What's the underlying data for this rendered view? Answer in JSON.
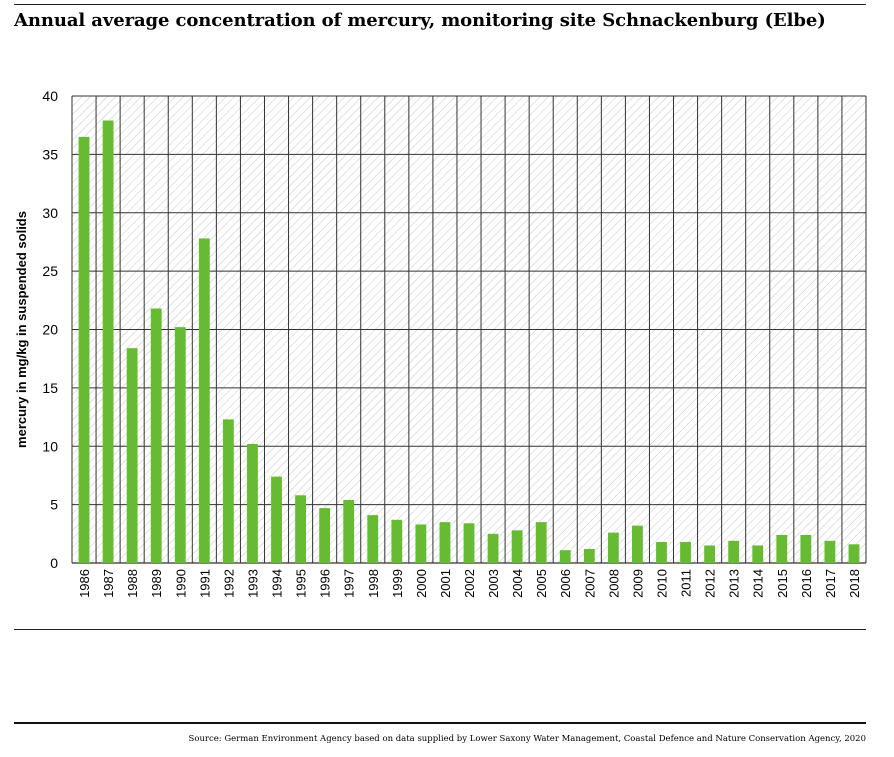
{
  "header": {
    "title": "Annual average concentration of mercury, monitoring site Schnackenburg (Elbe)"
  },
  "footer": {
    "source": "Source: German Environment Agency based on data supplied by Lower Saxony Water Management, Coastal Defence and Nature Conservation Agency, 2020"
  },
  "chart_data": {
    "type": "bar",
    "title": "Annual average concentration of mercury, monitoring site Schnackenburg (Elbe)",
    "xlabel": "",
    "ylabel": "mercury in mg/kg in suspended solids",
    "ylim": [
      0,
      40
    ],
    "yticks": [
      0,
      5,
      10,
      15,
      20,
      25,
      30,
      35,
      40
    ],
    "grid": true,
    "bar_color": "#66bb33",
    "categories": [
      "1986",
      "1987",
      "1988",
      "1989",
      "1990",
      "1991",
      "1992",
      "1993",
      "1994",
      "1995",
      "1996",
      "1997",
      "1998",
      "1999",
      "2000",
      "2001",
      "2002",
      "2003",
      "2004",
      "2005",
      "2006",
      "2007",
      "2008",
      "2009",
      "2010",
      "2011",
      "2012",
      "2013",
      "2014",
      "2015",
      "2016",
      "2017",
      "2018"
    ],
    "values": [
      36.5,
      37.9,
      18.4,
      21.8,
      20.2,
      27.8,
      12.3,
      10.2,
      7.4,
      5.8,
      4.7,
      5.4,
      4.1,
      3.7,
      3.3,
      3.5,
      3.4,
      2.5,
      2.8,
      3.5,
      1.1,
      1.2,
      2.6,
      3.2,
      1.8,
      1.8,
      1.5,
      1.9,
      1.5,
      2.4,
      2.4,
      1.9,
      1.6
    ]
  }
}
